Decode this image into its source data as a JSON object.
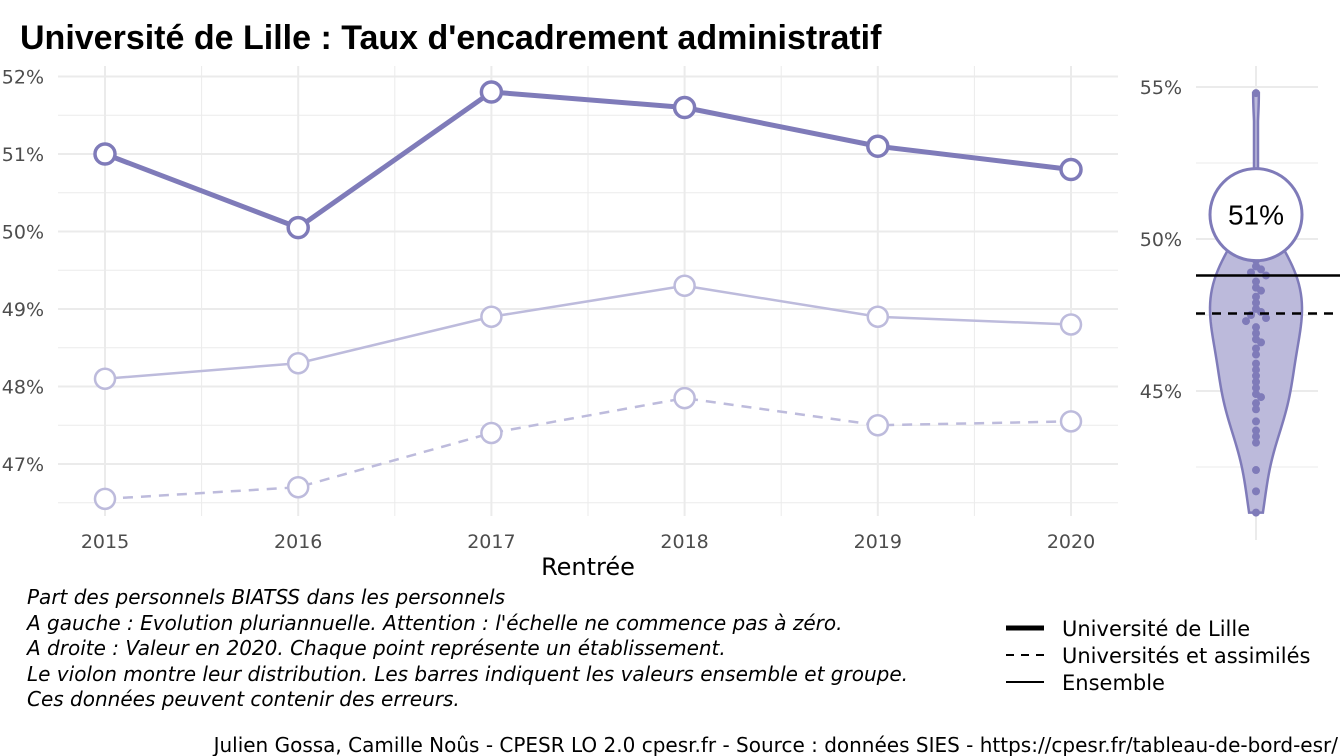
{
  "title": "Université de Lille  :  Taux d'encadrement administratif",
  "chart_data": [
    {
      "type": "line",
      "xlabel": "Rentrée",
      "ylabel": "",
      "ylim": [
        46.5,
        52.1
      ],
      "yticks": [
        "47%",
        "48%",
        "49%",
        "50%",
        "51%",
        "52%"
      ],
      "ytick_values": [
        47,
        48,
        49,
        50,
        51,
        52
      ],
      "categories": [
        "2015",
        "2016",
        "2017",
        "2018",
        "2019",
        "2020"
      ],
      "grid": true,
      "series": [
        {
          "name": "Université de Lille",
          "style": "solid-thick",
          "values": [
            51.0,
            50.05,
            51.8,
            51.6,
            51.1,
            50.8
          ]
        },
        {
          "name": "Ensemble",
          "style": "solid-light",
          "values": [
            48.1,
            48.3,
            48.9,
            49.3,
            48.9,
            48.8
          ]
        },
        {
          "name": "Universités et assimilés",
          "style": "dashed-light",
          "values": [
            46.55,
            46.7,
            47.4,
            47.85,
            47.5,
            47.55
          ]
        }
      ]
    },
    {
      "type": "violin",
      "year": "2020",
      "ylim": [
        41,
        56
      ],
      "yticks": [
        "45%",
        "50%",
        "55%"
      ],
      "ytick_values": [
        45,
        50,
        55
      ],
      "highlight_value": 50.8,
      "highlight_label": "51%",
      "ensemble_line": 48.8,
      "group_line": 47.55,
      "points": [
        54.8,
        50.3,
        49.9,
        49.5,
        49.3,
        49.1,
        49.0,
        48.9,
        48.8,
        48.6,
        48.4,
        48.3,
        48.1,
        47.9,
        47.7,
        47.6,
        47.5,
        47.4,
        47.3,
        47.1,
        46.9,
        46.7,
        46.6,
        46.4,
        46.2,
        45.9,
        45.7,
        45.5,
        45.3,
        45.1,
        44.9,
        44.8,
        44.6,
        44.4,
        44.0,
        43.7,
        43.5,
        43.3,
        42.4,
        41.7,
        41.0
      ]
    }
  ],
  "caption_lines": [
    "Part des personnels BIATSS dans les personnels",
    "A gauche : Evolution pluriannuelle. Attention : l'échelle ne commence pas à zéro.",
    "A droite : Valeur en 2020. Chaque point représente un établissement.",
    "Le violon montre leur distribution. Les barres indiquent les valeurs ensemble et groupe.",
    "Ces données peuvent contenir des erreurs."
  ],
  "legend": [
    {
      "label": "Université de Lille",
      "style": "thick"
    },
    {
      "label": "Universités et assimilés",
      "style": "dashed"
    },
    {
      "label": "Ensemble",
      "style": "thin"
    }
  ],
  "footer": "Julien Gossa, Camille Noûs - CPESR LO 2.0 cpesr.fr - Source : données SIES - https://cpesr.fr/tableau-de-bord-esr/",
  "colors": {
    "main": "#7f7bb9",
    "light": "#bdbbdc",
    "violin_fill": "#bcbadb",
    "grid": "#ebebeb",
    "tick_text": "#4d4d4d"
  }
}
